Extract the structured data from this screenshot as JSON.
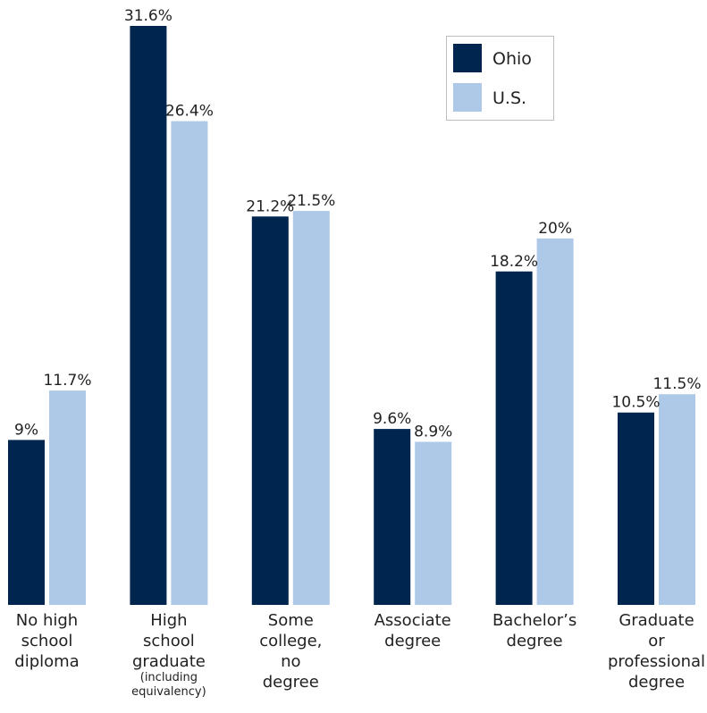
{
  "chart_data": {
    "type": "bar",
    "title": "",
    "xlabel": "",
    "ylabel": "",
    "ylim": [
      0,
      31.6
    ],
    "grid": false,
    "legend_position": "top-right",
    "categories": [
      {
        "lines": [
          "No high",
          "school",
          "diploma"
        ],
        "sub": []
      },
      {
        "lines": [
          "High",
          "school",
          "graduate"
        ],
        "sub": [
          "(including",
          "equivalency)"
        ]
      },
      {
        "lines": [
          "Some",
          "college,",
          "no",
          "degree"
        ],
        "sub": []
      },
      {
        "lines": [
          "Associate",
          "degree"
        ],
        "sub": []
      },
      {
        "lines": [
          "Bachelor’s",
          "degree"
        ],
        "sub": []
      },
      {
        "lines": [
          "Graduate",
          "or",
          "professional",
          "degree"
        ],
        "sub": []
      }
    ],
    "series": [
      {
        "name": "Ohio",
        "color": "#00264f",
        "values": [
          9,
          31.6,
          21.2,
          9.6,
          18.2,
          10.5
        ],
        "labels": [
          "9%",
          "31.6%",
          "21.2%",
          "9.6%",
          "18.2%",
          "10.5%"
        ]
      },
      {
        "name": "U.S.",
        "color": "#aec8e8",
        "values": [
          11.7,
          26.4,
          21.5,
          8.9,
          20,
          11.5
        ],
        "labels": [
          "11.7%",
          "26.4%",
          "21.5%",
          "8.9%",
          "20%",
          "11.5%"
        ]
      }
    ]
  }
}
